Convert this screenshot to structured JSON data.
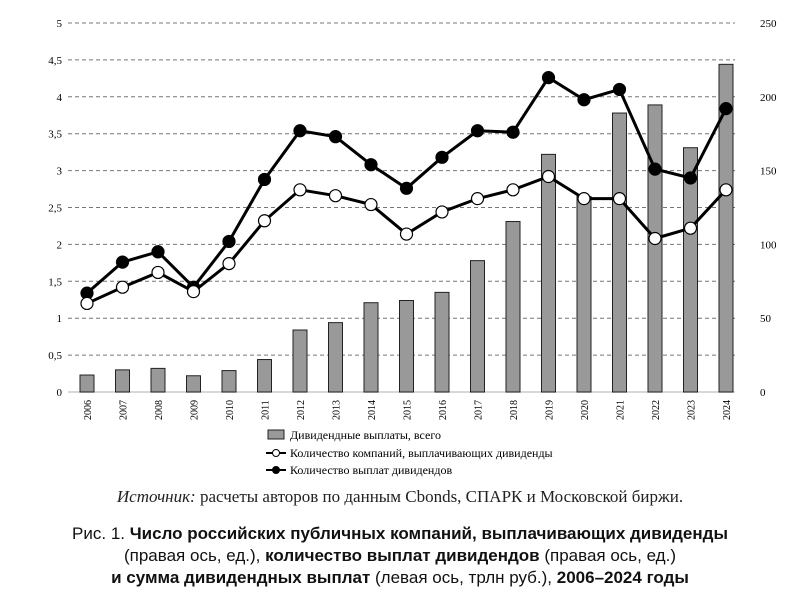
{
  "chart_data": {
    "type": "bar+line",
    "categories": [
      "2006",
      "2007",
      "2008",
      "2009",
      "2010",
      "2011",
      "2012",
      "2013",
      "2014",
      "2015",
      "2016",
      "2017",
      "2018",
      "2019",
      "2020",
      "2021",
      "2022",
      "2023",
      "2024"
    ],
    "left_axis": {
      "range": [
        0,
        5
      ],
      "ticks": [
        "0",
        "0,5",
        "1",
        "1,5",
        "2",
        "2,5",
        "3",
        "3,5",
        "4",
        "4,5",
        "5"
      ]
    },
    "right_axis": {
      "range": [
        0,
        250
      ],
      "ticks": [
        "0",
        "50",
        "100",
        "150",
        "200",
        "250"
      ]
    },
    "grid": true,
    "legend_placement": "bottom",
    "series": [
      {
        "name": "Дивидендные выплаты, всего",
        "type": "bar",
        "axis": "left",
        "color": "#999999",
        "values": [
          0.23,
          0.3,
          0.32,
          0.22,
          0.29,
          0.44,
          0.84,
          0.94,
          1.21,
          1.24,
          1.35,
          1.78,
          2.31,
          3.22,
          2.65,
          3.78,
          3.89,
          3.31,
          4.44
        ]
      },
      {
        "name": "Количество компаний, выплачивающих дивиденды",
        "type": "line",
        "marker": "white",
        "axis": "right",
        "values": [
          60,
          71,
          81,
          68,
          87,
          116,
          137,
          133,
          127,
          107,
          122,
          131,
          137,
          146,
          131,
          131,
          104,
          111,
          137
        ]
      },
      {
        "name": "Количество выплат дивидендов",
        "type": "line",
        "marker": "black",
        "axis": "right",
        "values": [
          67,
          88,
          95,
          71,
          102,
          144,
          177,
          173,
          154,
          138,
          159,
          177,
          176,
          213,
          198,
          205,
          151,
          145,
          192
        ]
      }
    ]
  },
  "source": {
    "label": "Источник:",
    "text": " расчеты авторов по данным Cbonds, СПАРК и Московской биржи."
  },
  "caption": {
    "p1": "Рис. 1. ",
    "b1": "Число российских публичных компаний, выплачивающих дивиденды",
    "p2": "(правая ось, ед.), ",
    "b2": "количество выплат дивидендов",
    "p3": " (правая ось, ед.)",
    "b3": "и сумма дивидендных выплат",
    "p4": " (левая ось, трлн руб.), ",
    "b4": "2006–2024 годы"
  }
}
